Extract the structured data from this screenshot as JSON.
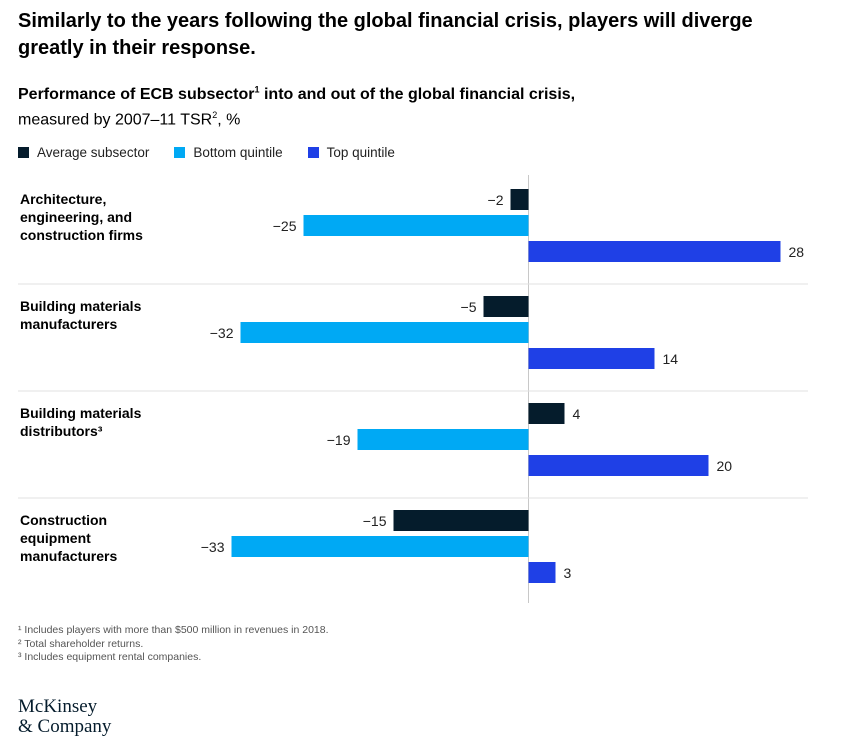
{
  "headline": "Similarly to the years following the global financial crisis, players will diverge greatly in their response.",
  "subtitle": {
    "bold_text": "Performance of ECB subsector",
    "bold_sup": "1",
    "bold_tail": " into and out of the global financial crisis,",
    "line2_text": "measured by 2007–11 TSR",
    "line2_sup": "2",
    "line2_tail": ", %"
  },
  "footnotes": [
    "¹ Includes players with more than $500 million in revenues in 2018.",
    "² Total shareholder returns.",
    "³ Includes equipment rental companies."
  ],
  "logo": {
    "line1": "McKinsey",
    "line2": "& Company"
  },
  "colors": {
    "Average subsector": "#051c2c",
    "Bottom quintile": "#00a9f4",
    "Top quintile": "#1f40e6",
    "divider": "#e0e0e0",
    "axis": "#c8c8c8"
  },
  "chart_data": {
    "type": "bar",
    "orientation": "horizontal",
    "categories": [
      [
        "Architecture,",
        "engineering, and",
        "construction firms"
      ],
      [
        "Building materials",
        "manufacturers"
      ],
      [
        "Building materials",
        "distributors³"
      ],
      [
        "Construction",
        "equipment",
        "manufacturers"
      ]
    ],
    "series": [
      {
        "name": "Average subsector",
        "values": [
          -2,
          -5,
          4,
          -15
        ]
      },
      {
        "name": "Bottom quintile",
        "values": [
          -25,
          -32,
          -19,
          -33
        ]
      },
      {
        "name": "Top quintile",
        "values": [
          28,
          14,
          20,
          3
        ]
      }
    ],
    "value_labels": [
      [
        "−2",
        "−25",
        "28"
      ],
      [
        "−5",
        "−32",
        "14"
      ],
      [
        "4",
        "−19",
        "20"
      ],
      [
        "−15",
        "−33",
        "3"
      ]
    ],
    "xlim": [
      -33,
      28
    ],
    "legend_position": "top-left",
    "grid": false
  }
}
